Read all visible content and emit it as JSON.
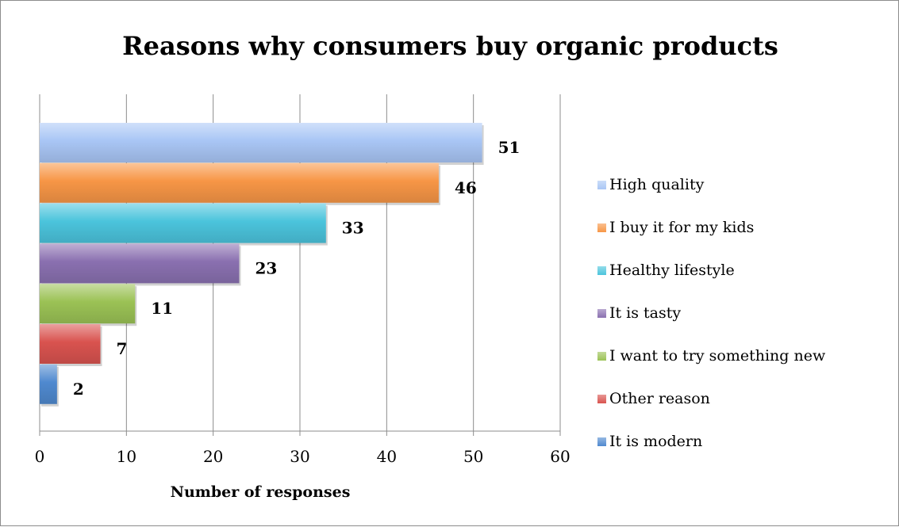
{
  "chart_data": {
    "type": "bar",
    "orientation": "horizontal",
    "title": "Reasons why consumers buy organic products",
    "xlabel": "Number of responses",
    "ylabel": "",
    "xlim": [
      0,
      60
    ],
    "xticks": [
      "0",
      "10",
      "20",
      "30",
      "40",
      "50",
      "60"
    ],
    "grid": "vertical",
    "legend_position": "right",
    "categories": [
      "High quality",
      "I buy it for my kids",
      "Healthy lifestyle",
      "It is tasty",
      "I want to try something new",
      "Other reason",
      "It is modern"
    ],
    "values": [
      51,
      46,
      33,
      23,
      11,
      7,
      2
    ],
    "data_labels": [
      "51",
      "46",
      "33",
      "23",
      "11",
      "7",
      "2"
    ],
    "colors": [
      "#a9c6f5",
      "#f79646",
      "#4bc4dc",
      "#8a70b0",
      "#9bc255",
      "#d9534f",
      "#4f89cf"
    ]
  }
}
